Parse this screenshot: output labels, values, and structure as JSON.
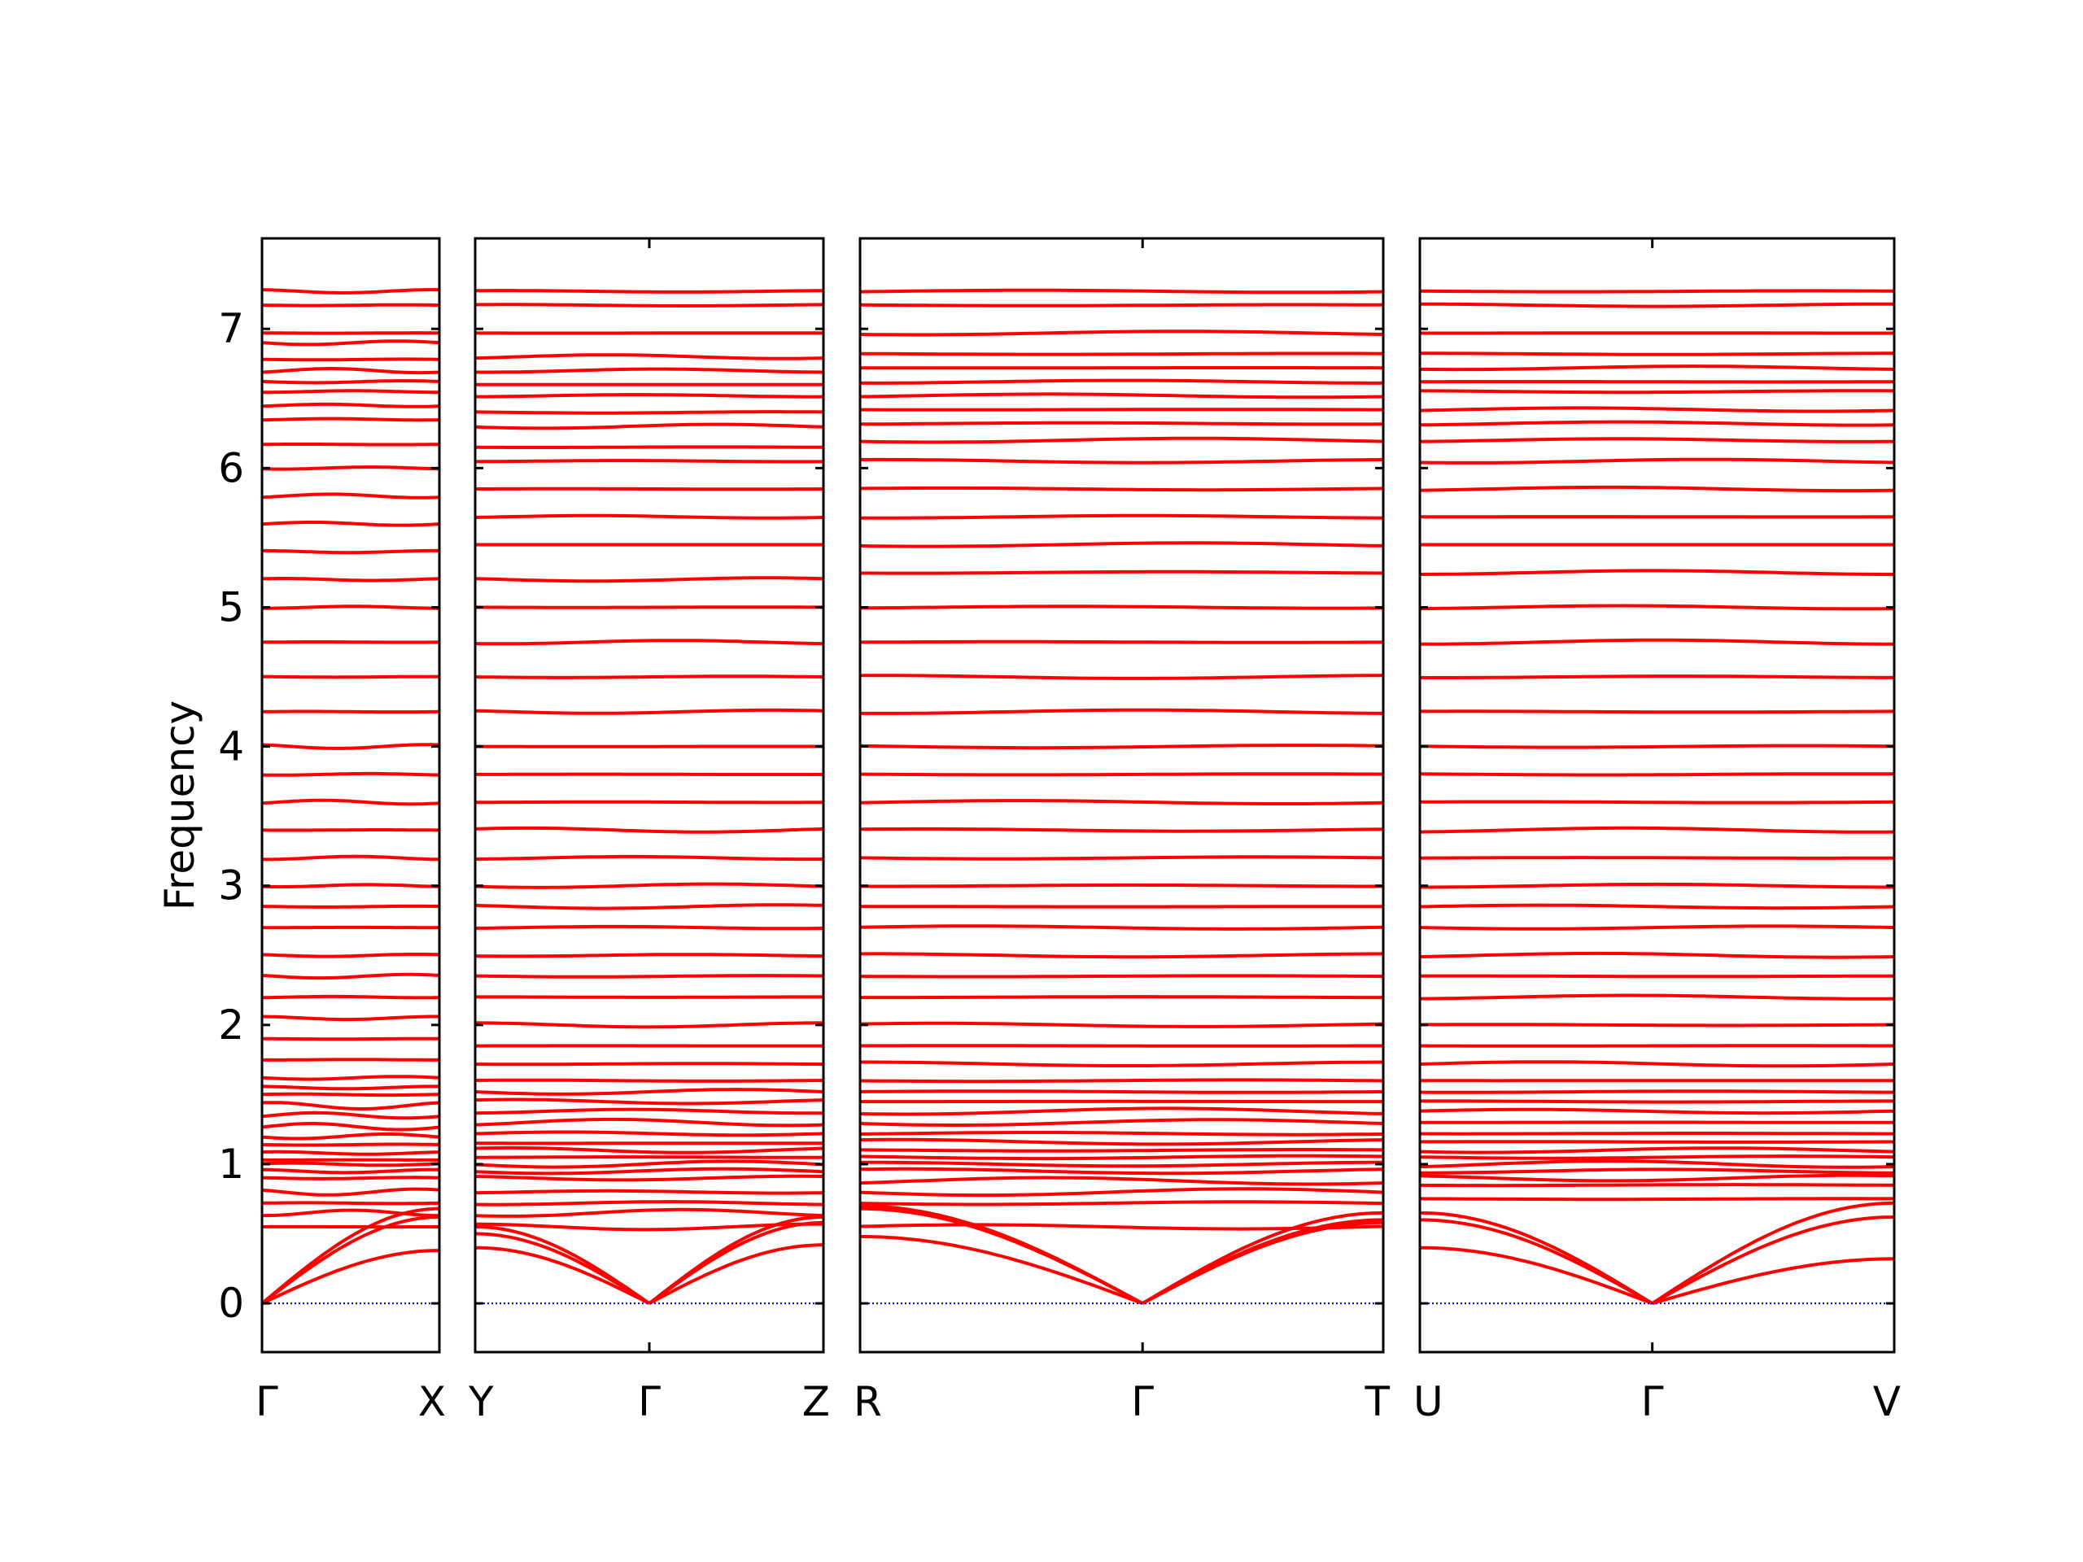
{
  "chart_data": {
    "type": "line",
    "title": "",
    "ylabel": "Frequency",
    "xlabel": "",
    "ylim": [
      -0.35,
      7.65
    ],
    "yticks": [
      0,
      1,
      2,
      3,
      4,
      5,
      6,
      7
    ],
    "ytick_labels": [
      "0",
      "1",
      "2",
      "3",
      "4",
      "5",
      "6",
      "7"
    ],
    "grid": false,
    "line_color": "#ff0000",
    "zero_line_color": "#0000cc",
    "panels": [
      {
        "id": "gamma-x",
        "labels": [
          "Γ",
          "X"
        ],
        "gamma_at": 0,
        "acoustic_end": [
          0.68,
          0.62,
          0.38
        ],
        "optical": [
          0.55,
          0.65,
          0.72,
          0.8,
          0.9,
          0.95,
          1.0,
          1.03,
          1.08,
          1.14,
          1.2,
          1.27,
          1.35,
          1.42,
          1.5,
          1.55,
          1.62,
          1.75,
          1.9,
          2.05,
          2.2,
          2.35,
          2.5,
          2.7,
          2.85,
          3.0,
          3.2,
          3.4,
          3.6,
          3.8,
          4.0,
          4.25,
          4.5,
          4.75,
          5.0,
          5.2,
          5.4,
          5.6,
          5.8,
          6.0,
          6.17,
          6.35,
          6.45,
          6.55,
          6.62,
          6.7,
          6.78,
          6.9,
          6.97,
          7.17,
          7.27
        ]
      },
      {
        "id": "y-gamma-z",
        "labels": [
          "Y",
          "Γ",
          "Z"
        ],
        "gamma_at": 0.5,
        "acoustic_start": [
          0.4,
          0.5,
          0.55
        ],
        "acoustic_end": [
          0.62,
          0.58,
          0.42
        ],
        "optical": [
          0.55,
          0.65,
          0.72,
          0.8,
          0.9,
          0.95,
          1.0,
          1.05,
          1.1,
          1.15,
          1.22,
          1.3,
          1.38,
          1.45,
          1.52,
          1.6,
          1.72,
          1.85,
          2.0,
          2.2,
          2.35,
          2.5,
          2.7,
          2.85,
          3.0,
          3.2,
          3.4,
          3.6,
          3.8,
          4.0,
          4.25,
          4.5,
          4.75,
          5.0,
          5.2,
          5.45,
          5.65,
          5.85,
          6.05,
          6.15,
          6.3,
          6.4,
          6.52,
          6.6,
          6.7,
          6.8,
          6.97,
          7.17,
          7.27
        ]
      },
      {
        "id": "r-gamma-t",
        "labels": [
          "R",
          "Γ",
          "T"
        ],
        "gamma_at": 0.54,
        "acoustic_start": [
          0.48,
          0.68,
          0.7
        ],
        "acoustic_end": [
          0.6,
          0.58,
          0.65
        ],
        "optical": [
          0.55,
          0.72,
          0.8,
          0.88,
          0.95,
          1.0,
          1.05,
          1.1,
          1.16,
          1.22,
          1.3,
          1.38,
          1.45,
          1.52,
          1.6,
          1.72,
          1.85,
          2.0,
          2.2,
          2.35,
          2.5,
          2.7,
          2.85,
          3.0,
          3.2,
          3.4,
          3.6,
          3.8,
          4.0,
          4.25,
          4.5,
          4.75,
          5.0,
          5.25,
          5.45,
          5.65,
          5.85,
          6.05,
          6.2,
          6.32,
          6.42,
          6.52,
          6.62,
          6.72,
          6.82,
          6.97,
          7.17,
          7.27
        ]
      },
      {
        "id": "u-gamma-v",
        "labels": [
          "U",
          "Γ",
          "V"
        ],
        "gamma_at": 0.49,
        "acoustic_start": [
          0.4,
          0.6,
          0.65
        ],
        "acoustic_end": [
          0.32,
          0.62,
          0.72
        ],
        "optical": [
          0.75,
          0.85,
          0.9,
          0.95,
          1.0,
          1.05,
          1.1,
          1.16,
          1.22,
          1.3,
          1.38,
          1.45,
          1.52,
          1.6,
          1.72,
          1.85,
          2.0,
          2.2,
          2.35,
          2.5,
          2.7,
          2.85,
          3.0,
          3.2,
          3.4,
          3.6,
          3.8,
          4.0,
          4.25,
          4.5,
          4.75,
          5.0,
          5.25,
          5.45,
          5.65,
          5.85,
          6.05,
          6.2,
          6.32,
          6.42,
          6.55,
          6.62,
          6.72,
          6.82,
          6.97,
          7.17,
          7.27
        ]
      }
    ]
  }
}
